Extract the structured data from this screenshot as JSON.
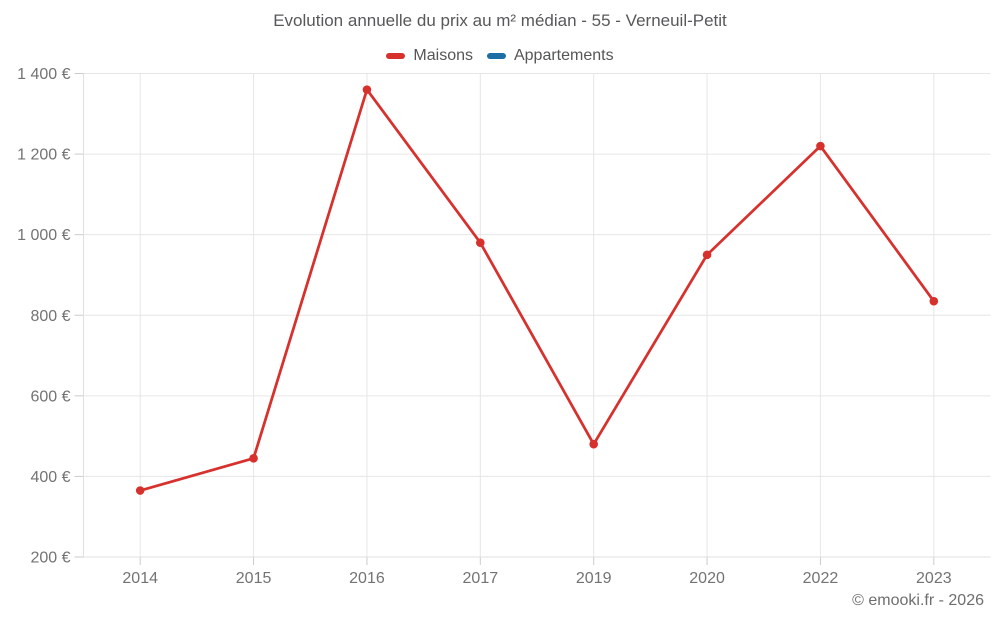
{
  "chart_data": {
    "type": "line",
    "title": "Evolution annuelle du prix au m² médian - 55 - Verneuil-Petit",
    "categories": [
      "2014",
      "2015",
      "2016",
      "2017",
      "2019",
      "2020",
      "2022",
      "2023"
    ],
    "series": [
      {
        "name": "Maisons",
        "color": "#d7312e",
        "values": [
          365,
          445,
          1360,
          980,
          480,
          950,
          1220,
          835
        ]
      },
      {
        "name": "Appartements",
        "color": "#1c6ea4",
        "values": []
      }
    ],
    "ylim": [
      200,
      1400
    ],
    "ytick_step": 200,
    "ytick_suffix": " €",
    "grid": true,
    "legend_position": "top",
    "credit": "© emooki.fr - 2026"
  },
  "colors": {
    "gridline": "#e6e6e6",
    "axis_line": "#e0e0e0",
    "tick": "#cccccc"
  }
}
